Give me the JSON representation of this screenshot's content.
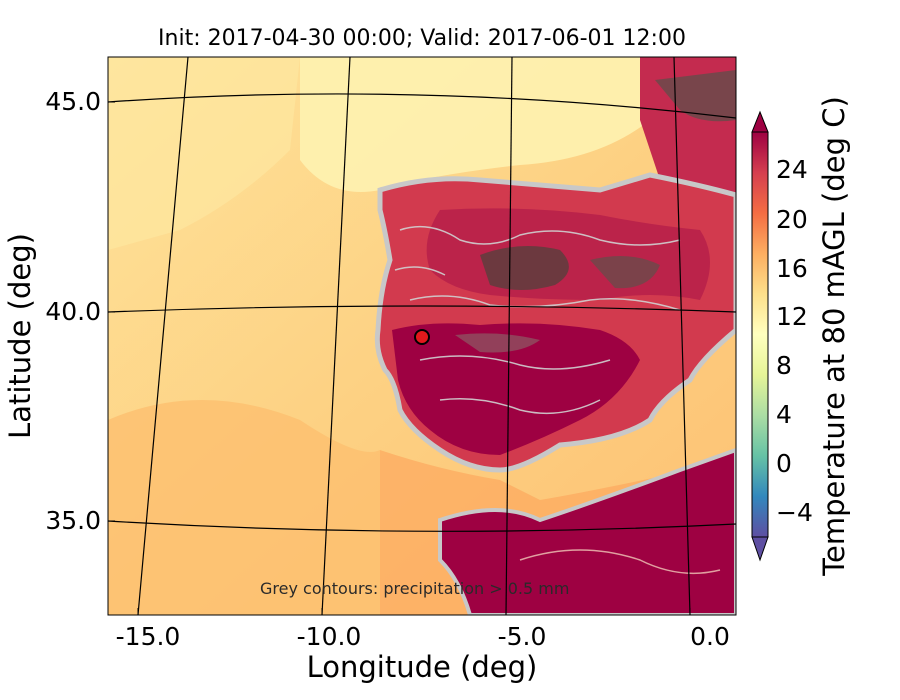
{
  "figure": {
    "title": "Init: 2017-04-30 00:00; Valid: 2017-06-01 12:00",
    "xlabel": "Longitude (deg)",
    "ylabel": "Latitude (deg)",
    "annotation": "Grey contours: precipitation > 0.5 mm"
  },
  "map": {
    "x_ticks": [
      "-15.0",
      "-10.0",
      "-5.0",
      "0.0"
    ],
    "y_ticks": [
      "45.0",
      "40.0",
      "35.0"
    ],
    "marker": {
      "color": "#e3191c",
      "edge_color": "#000000"
    }
  },
  "colorbar": {
    "label": "Temperature at 80 mAGL (deg C)",
    "ticks": [
      "24",
      "20",
      "16",
      "12",
      "8",
      "4",
      "0",
      "−4"
    ],
    "colormap": "Spectral_r",
    "range": [
      -6,
      28
    ],
    "extend": "both"
  },
  "chart_data": {
    "type": "heatmap",
    "title": "Init: 2017-04-30 00:00; Valid: 2017-06-01 12:00",
    "xlabel": "Longitude (deg)",
    "ylabel": "Latitude (deg)",
    "xlim": [
      -16,
      0.2
    ],
    "ylim": [
      32.7,
      46.1
    ],
    "x_ticks": [
      -15.0,
      -10.0,
      -5.0,
      0.0
    ],
    "y_ticks": [
      45.0,
      40.0,
      35.0
    ],
    "colorbar_label": "Temperature at 80 mAGL (deg C)",
    "colorbar_ticks": [
      24,
      20,
      16,
      12,
      8,
      4,
      0,
      -4
    ],
    "colorbar_range": [
      -6,
      28
    ],
    "marker": {
      "lon": -7.6,
      "lat": 39.4
    },
    "annotations": [
      "Grey contours: precipitation > 0.5 mm"
    ]
  }
}
